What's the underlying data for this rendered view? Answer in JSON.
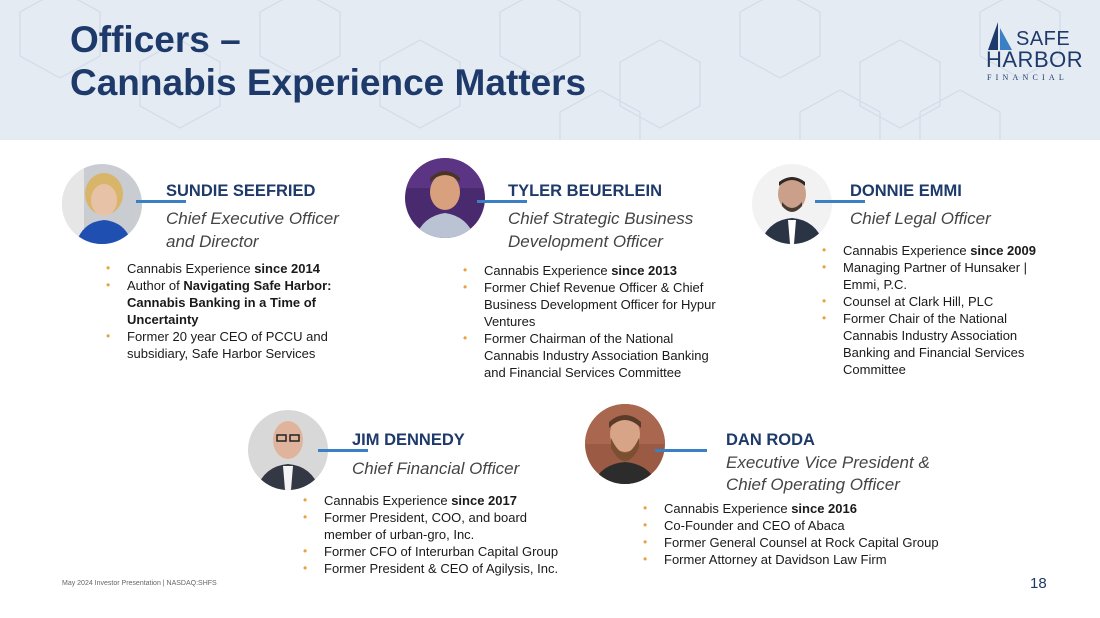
{
  "header": {
    "title_line1": "Officers –",
    "title_line2": "Cannabis Experience Matters"
  },
  "logo": {
    "word1": "SAFE",
    "word2": "HARBOR",
    "word3": "FINANCIAL"
  },
  "officers": [
    {
      "name": "SUNDIE SEEFRIED",
      "role_line1": "Chief Executive Officer",
      "role_line2": "and Director",
      "bullets": [
        {
          "lines": [
            {
              "text": "Cannabis Experience ",
              "bold": "since 2014"
            }
          ]
        },
        {
          "lines": [
            {
              "text": "Author of ",
              "bold": "Navigating Safe Harbor:"
            },
            {
              "text": "",
              "bold": "Cannabis Banking in a Time of"
            },
            {
              "text": "",
              "bold": "Uncertainty"
            }
          ]
        },
        {
          "lines": [
            {
              "text": "Former 20 year CEO of PCCU and",
              "bold": ""
            },
            {
              "text": "subsidiary, Safe Harbor Services",
              "bold": ""
            }
          ]
        }
      ]
    },
    {
      "name": "TYLER BEUERLEIN",
      "role_line1": "Chief Strategic Business",
      "role_line2": "Development Officer",
      "bullets": [
        {
          "lines": [
            {
              "text": "Cannabis Experience ",
              "bold": "since 2013"
            }
          ]
        },
        {
          "lines": [
            {
              "text": "Former Chief Revenue Officer & Chief",
              "bold": ""
            },
            {
              "text": "Business Development Officer for Hypur",
              "bold": ""
            },
            {
              "text": "Ventures",
              "bold": ""
            }
          ]
        },
        {
          "lines": [
            {
              "text": "Former Chairman of the National",
              "bold": ""
            },
            {
              "text": "Cannabis Industry Association Banking",
              "bold": ""
            },
            {
              "text": "and Financial Services Committee",
              "bold": ""
            }
          ]
        }
      ]
    },
    {
      "name": "DONNIE EMMI",
      "role_line1": "Chief Legal Officer",
      "role_line2": "",
      "bullets": [
        {
          "lines": [
            {
              "text": "Cannabis Experience ",
              "bold": "since 2009"
            }
          ]
        },
        {
          "lines": [
            {
              "text": "Managing Partner of Hunsaker |",
              "bold": ""
            },
            {
              "text": "Emmi, P.C.",
              "bold": ""
            }
          ]
        },
        {
          "lines": [
            {
              "text": "Counsel at Clark Hill, PLC",
              "bold": ""
            }
          ]
        },
        {
          "lines": [
            {
              "text": "Former Chair of the National",
              "bold": ""
            },
            {
              "text": "Cannabis Industry Association",
              "bold": ""
            },
            {
              "text": "Banking and Financial Services",
              "bold": ""
            },
            {
              "text": "Committee",
              "bold": ""
            }
          ]
        }
      ]
    },
    {
      "name": "JIM DENNEDY",
      "role_line1": "Chief Financial Officer",
      "role_line2": "",
      "bullets": [
        {
          "lines": [
            {
              "text": "Cannabis Experience ",
              "bold": "since 2017"
            }
          ]
        },
        {
          "lines": [
            {
              "text": "Former President, COO, and board",
              "bold": ""
            },
            {
              "text": "member of urban-gro, Inc.",
              "bold": ""
            }
          ]
        },
        {
          "lines": [
            {
              "text": "Former CFO of Interurban Capital Group",
              "bold": ""
            }
          ]
        },
        {
          "lines": [
            {
              "text": "Former President & CEO of Agilysis, Inc.",
              "bold": ""
            }
          ]
        }
      ]
    },
    {
      "name": "DAN RODA",
      "role_line1": "Executive Vice President &",
      "role_line2": "Chief Operating Officer",
      "bullets": [
        {
          "lines": [
            {
              "text": "Cannabis Experience ",
              "bold": "since 2016"
            }
          ]
        },
        {
          "lines": [
            {
              "text": "Co-Founder and CEO of Abaca",
              "bold": ""
            }
          ]
        },
        {
          "lines": [
            {
              "text": "Former General Counsel at Rock Capital Group",
              "bold": ""
            }
          ]
        },
        {
          "lines": [
            {
              "text": "Former Attorney at Davidson Law Firm",
              "bold": ""
            }
          ]
        }
      ]
    }
  ],
  "footer": {
    "text": "May 2024 Investor Presentation  |  NASDAQ:SHFS",
    "page": "18"
  },
  "colors": {
    "title": "#1e3a6a",
    "bullet": "#e7a33e",
    "connector": "#3b7fc4",
    "header_bg": "#e4ebf3"
  }
}
